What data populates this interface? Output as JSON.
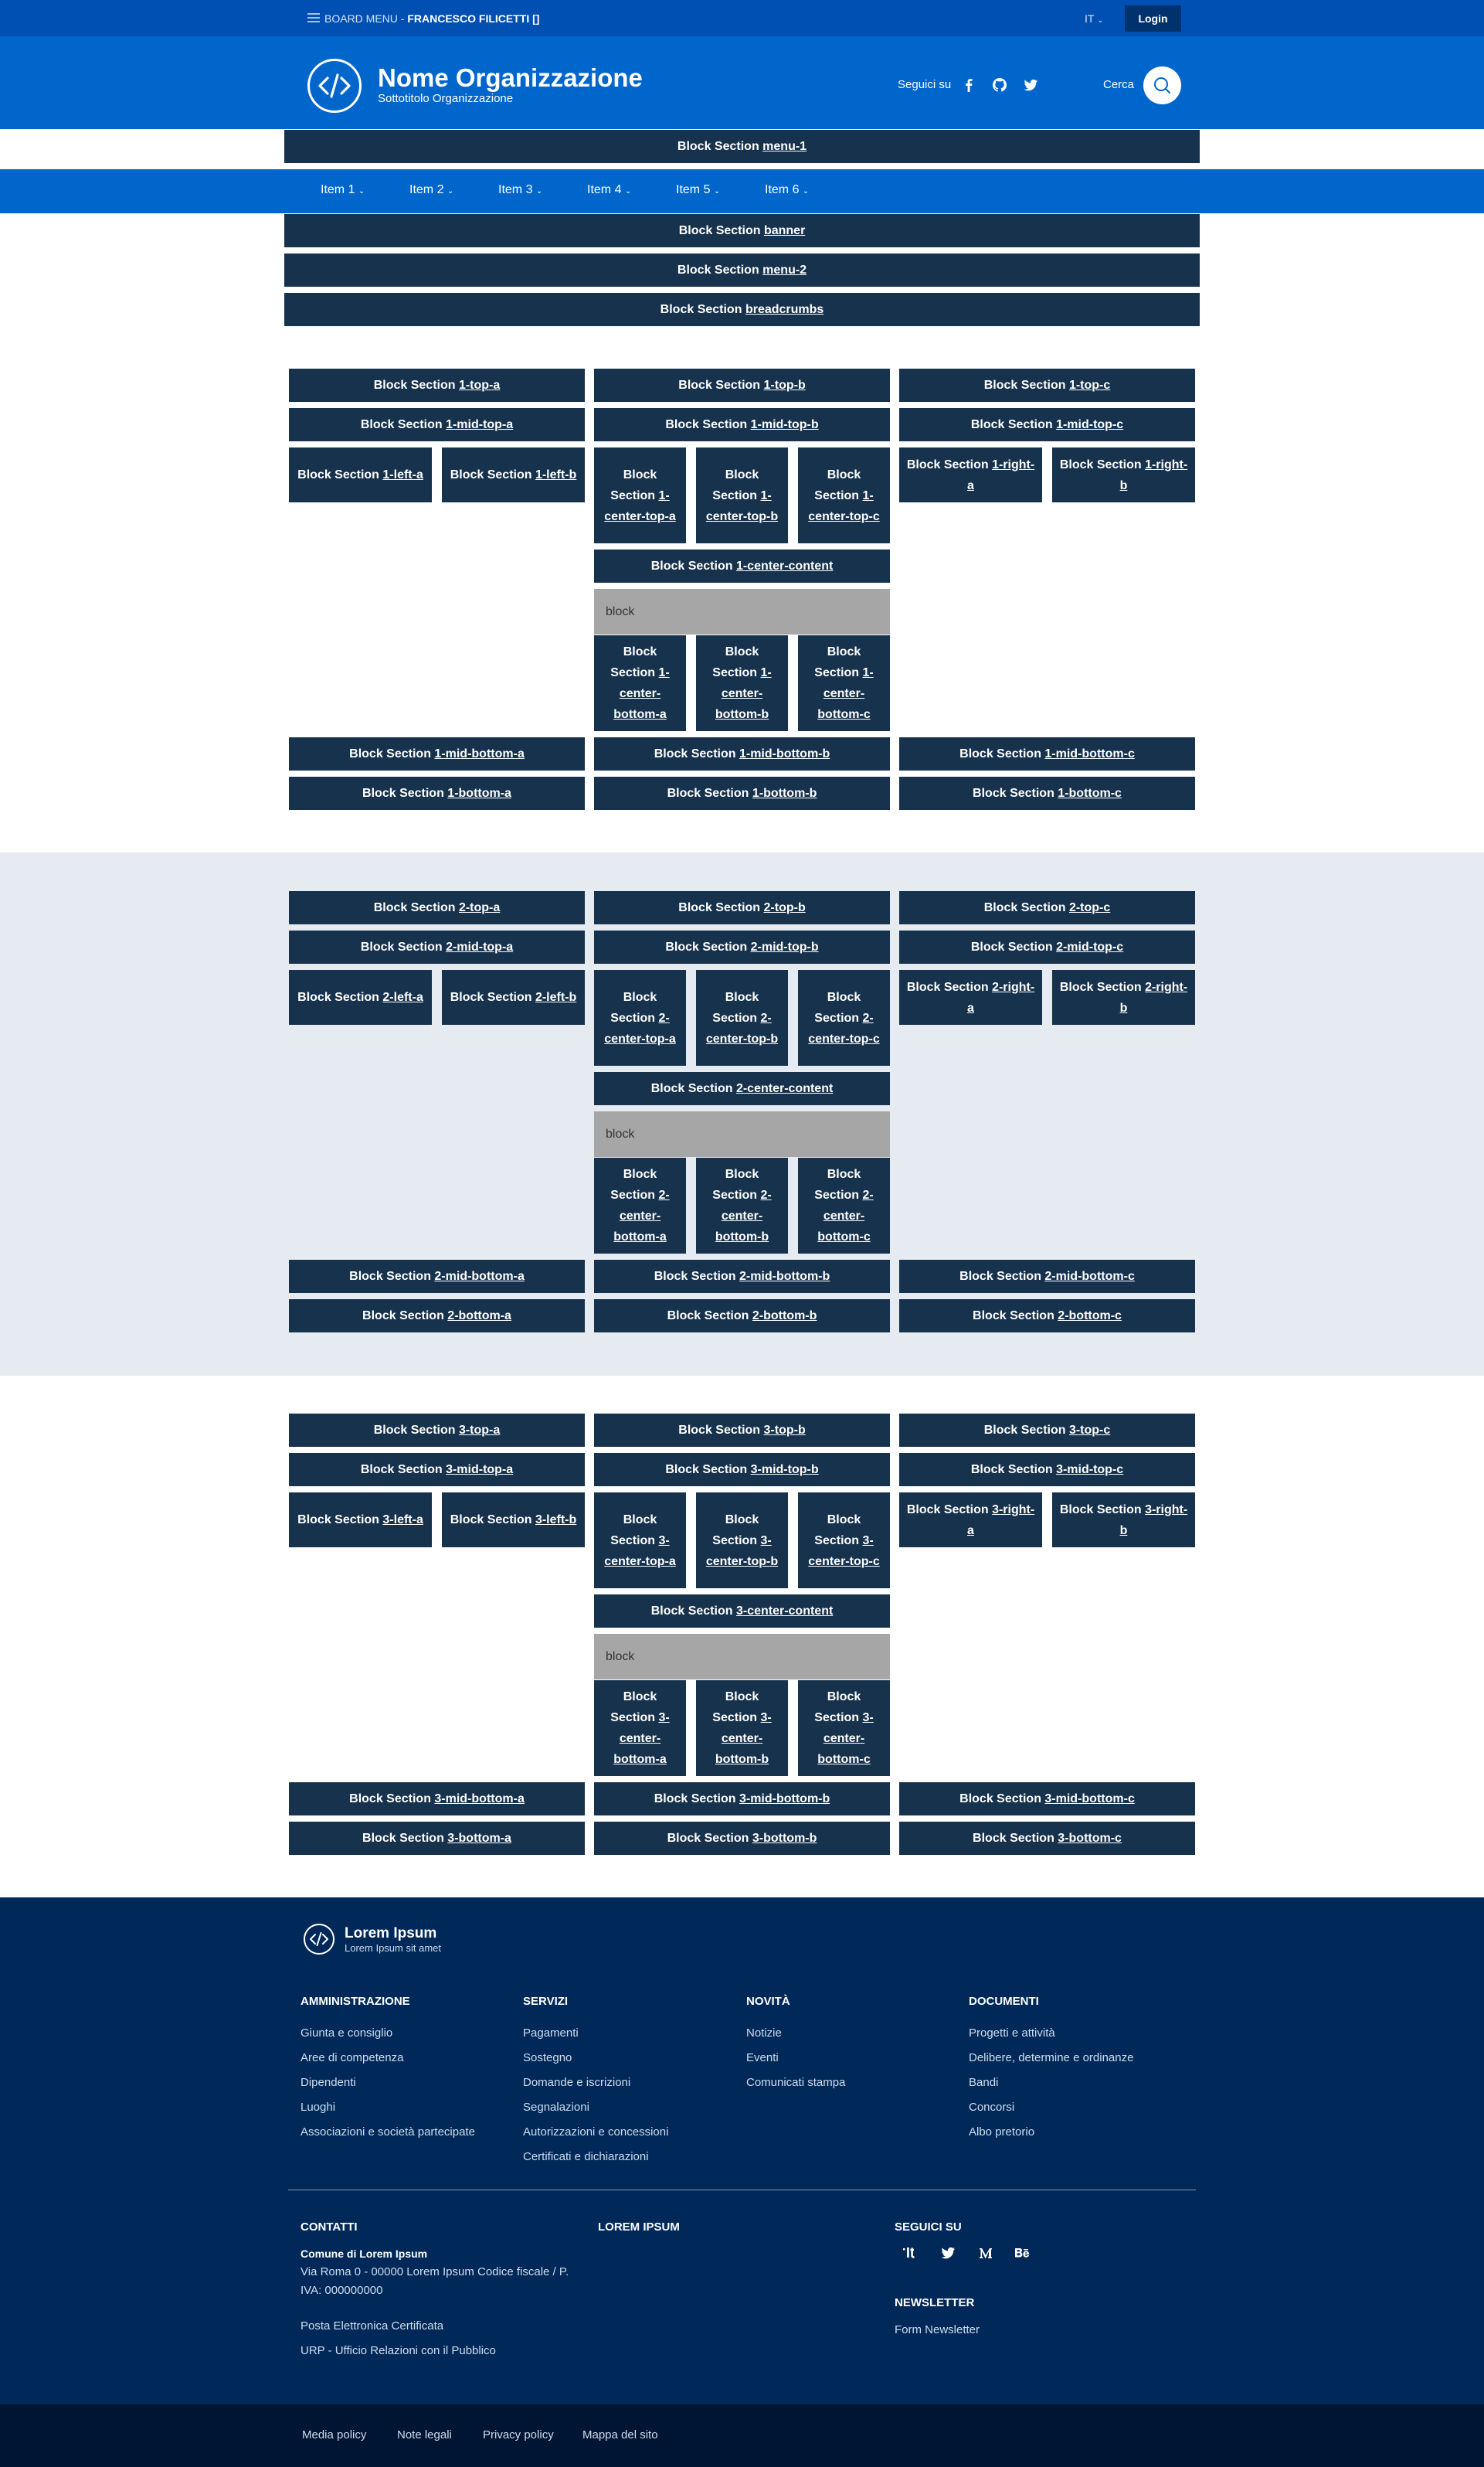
{
  "header": {
    "board_menu": "BOARD MENU - ",
    "user": "FRANCESCO FILICETTI []",
    "lang": "IT",
    "login": "Login",
    "org_name": "Nome Organizzazione",
    "org_sub": "Sottotitolo Organizzazione",
    "follow": "Seguici su",
    "search": "Cerca"
  },
  "top_blocks": [
    {
      "prefix": "Block Section ",
      "key": "menu-1"
    },
    {
      "prefix": "Block Section ",
      "key": "banner"
    },
    {
      "prefix": "Block Section ",
      "key": "menu-2"
    },
    {
      "prefix": "Block Section ",
      "key": "breadcrumbs"
    }
  ],
  "nav": [
    "Item 1",
    "Item 2",
    "Item 3",
    "Item 4",
    "Item 5",
    "Item 6"
  ],
  "sections": [
    "1",
    "2",
    "3"
  ],
  "section_block_prefix": "Block Section ",
  "generic_block": "block",
  "footer": {
    "name": "Lorem Ipsum",
    "sub": "Lorem Ipsum sit amet",
    "columns": [
      {
        "title": "AMMINISTRAZIONE",
        "links": [
          "Giunta e consiglio",
          "Aree di competenza",
          "Dipendenti",
          "Luoghi",
          "Associazioni e società partecipate"
        ]
      },
      {
        "title": "SERVIZI",
        "links": [
          "Pagamenti",
          "Sostegno",
          "Domande e iscrizioni",
          "Segnalazioni",
          "Autorizzazioni e concessioni",
          "Certificati e dichiarazioni"
        ]
      },
      {
        "title": "NOVITÀ",
        "links": [
          "Notizie",
          "Eventi",
          "Comunicati stampa"
        ]
      },
      {
        "title": "DOCUMENTI",
        "links": [
          "Progetti e attività",
          "Delibere, determine e ordinanze",
          "Bandi",
          "Concorsi",
          "Albo pretorio"
        ]
      }
    ],
    "contacts_title": "CONTATTI",
    "contacts_name": "Comune di Lorem Ipsum",
    "contacts_addr1": "Via Roma 0 - 00000 Lorem Ipsum Codice fiscale / P.",
    "contacts_addr2": "IVA: 000000000",
    "pec": "Posta Elettronica Certificata",
    "urp": "URP - Ufficio Relazioni con il Pubblico",
    "lorem_title": "LOREM IPSUM",
    "follow_title": "SEGUICI SU",
    "newsletter_title": "NEWSLETTER",
    "newsletter_link": "Form Newsletter",
    "social_icons": [
      "designers-italia-icon",
      "twitter-icon",
      "medium-icon",
      "behance-icon"
    ],
    "sub_links": [
      "Media policy",
      "Note legali",
      "Privacy policy",
      "Mappa del sito"
    ]
  }
}
